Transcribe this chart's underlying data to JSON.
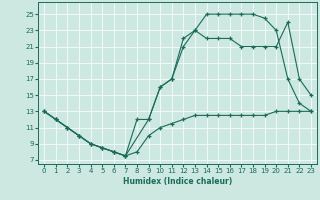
{
  "xlabel": "Humidex (Indice chaleur)",
  "bg_color": "#cce8e0",
  "line_color": "#1a6b5a",
  "xlim": [
    -0.5,
    23.5
  ],
  "ylim": [
    6.5,
    26.5
  ],
  "xticks": [
    0,
    1,
    2,
    3,
    4,
    5,
    6,
    7,
    8,
    9,
    10,
    11,
    12,
    13,
    14,
    15,
    16,
    17,
    18,
    19,
    20,
    21,
    22,
    23
  ],
  "yticks": [
    7,
    9,
    11,
    13,
    15,
    17,
    19,
    21,
    23,
    25
  ],
  "line1_x": [
    0,
    1,
    2,
    3,
    4,
    5,
    6,
    7,
    8,
    9,
    10,
    11,
    12,
    13,
    14,
    15,
    16,
    17,
    18,
    19,
    20,
    21,
    22,
    23
  ],
  "line1_y": [
    13,
    12,
    11,
    10,
    9,
    8.5,
    8,
    7.5,
    8,
    10,
    11,
    11.5,
    12,
    12.5,
    12.5,
    12.5,
    12.5,
    12.5,
    12.5,
    12.5,
    13,
    13,
    13,
    13
  ],
  "line2_x": [
    0,
    1,
    2,
    3,
    4,
    5,
    6,
    7,
    9,
    10,
    11,
    12,
    13,
    14,
    15,
    16,
    17,
    18,
    19,
    20,
    21,
    22,
    23
  ],
  "line2_y": [
    13,
    12,
    11,
    10,
    9,
    8.5,
    8,
    7.5,
    12,
    16,
    17,
    21,
    23,
    25,
    25,
    25,
    25,
    25,
    24.5,
    23,
    17,
    14,
    13
  ],
  "line3_x": [
    0,
    1,
    2,
    3,
    4,
    5,
    6,
    7,
    8,
    9,
    10,
    11,
    12,
    13,
    14,
    15,
    16,
    17,
    18,
    19,
    20,
    21,
    22,
    23
  ],
  "line3_y": [
    13,
    12,
    11,
    10,
    9,
    8.5,
    8,
    7.5,
    12,
    12,
    16,
    17,
    22,
    23,
    22,
    22,
    22,
    21,
    21,
    21,
    21,
    24,
    17,
    15
  ]
}
